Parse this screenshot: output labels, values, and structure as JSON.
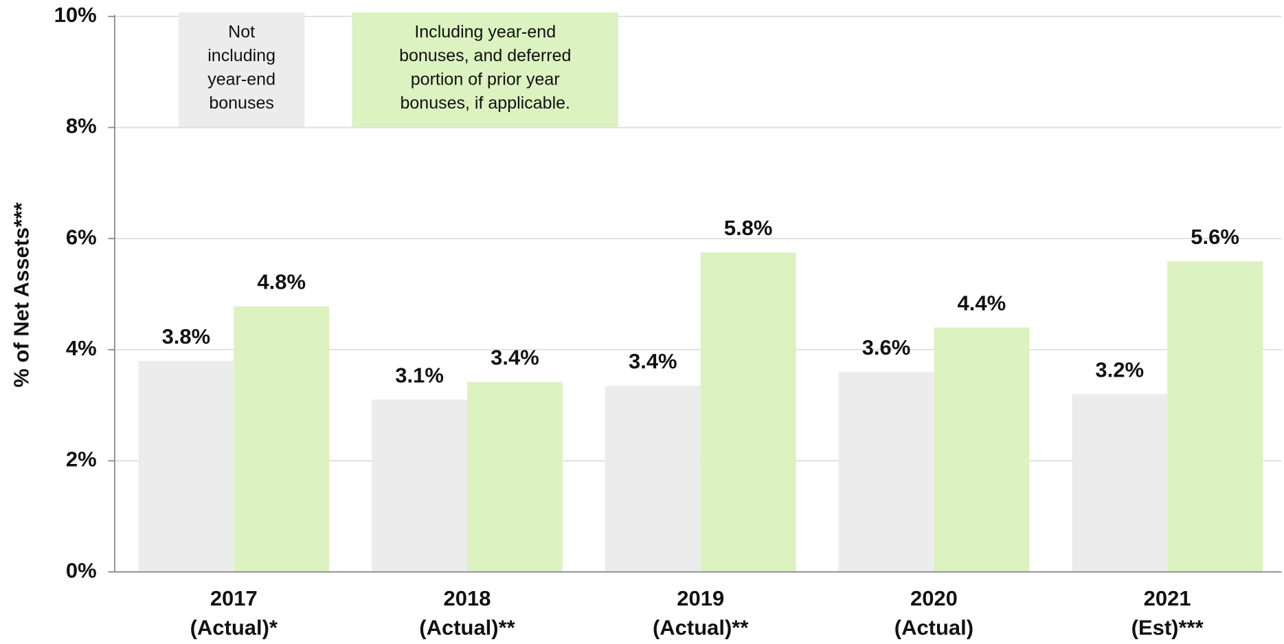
{
  "chart_data": {
    "type": "bar",
    "y_label": "% of Net Assets***",
    "categories": [
      [
        "2017",
        "(Actual)*"
      ],
      [
        "2018",
        "(Actual)**"
      ],
      [
        "2019",
        "(Actual)**"
      ],
      [
        "2020",
        "(Actual)"
      ],
      [
        "2021",
        "(Est)***"
      ]
    ],
    "series": [
      {
        "name": [
          "Not",
          "including",
          "year-end",
          "bonuses"
        ],
        "color": "#ececec",
        "values": [
          3.8,
          3.1,
          3.35,
          3.6,
          3.2
        ],
        "value_labels": [
          "3.8%",
          "3.1%",
          "3.4%",
          "3.6%",
          "3.2%"
        ]
      },
      {
        "name": [
          "Including year-end",
          "bonuses, and deferred",
          "portion of prior year",
          "bonuses, if applicable."
        ],
        "color": "#dcf2c0",
        "values": [
          4.78,
          3.42,
          5.75,
          4.4,
          5.59
        ],
        "value_labels": [
          "4.8%",
          "3.4%",
          "5.8%",
          "4.4%",
          "5.6%"
        ]
      }
    ],
    "ylim": [
      0,
      10
    ],
    "yticks": [
      {
        "value": 0,
        "label": "0%"
      },
      {
        "value": 2,
        "label": "2%"
      },
      {
        "value": 4,
        "label": "4%"
      },
      {
        "value": 6,
        "label": "6%"
      },
      {
        "value": 8,
        "label": "8%"
      },
      {
        "value": 10,
        "label": "10%"
      }
    ],
    "grid": true
  }
}
